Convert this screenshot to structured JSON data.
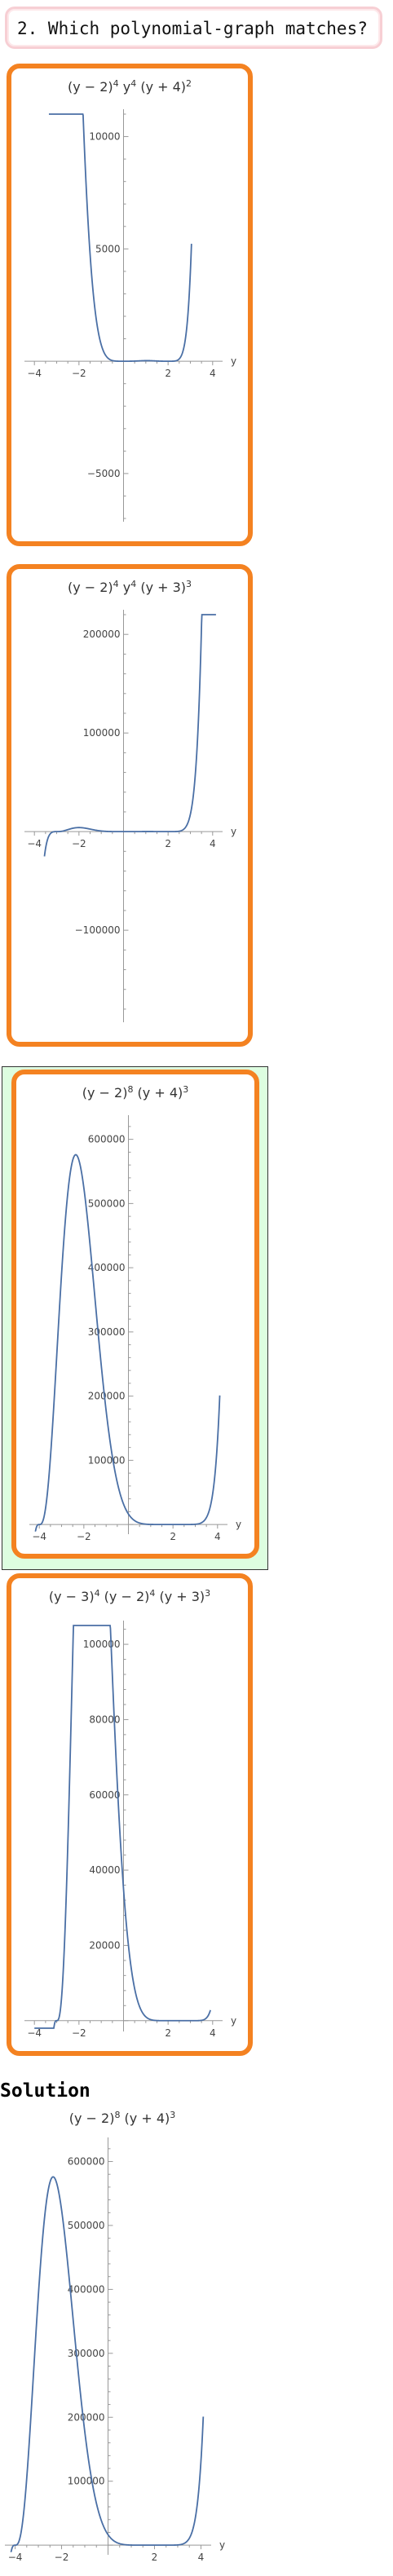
{
  "question": {
    "text": "2. Which polynomial-graph matches?"
  },
  "options": [
    {
      "id": "option-1",
      "selected_correct": false,
      "chart_data": {
        "type": "line",
        "title_parts": [
          "(y − 2)",
          "4",
          " y",
          "4",
          " (y + 4)",
          "2"
        ],
        "xlabel": "y",
        "xlim": [
          -4.3,
          4.3
        ],
        "ylim": [
          -7000,
          11000
        ],
        "xticks": [
          "−4",
          "−2",
          "2",
          "4"
        ],
        "yticks": [
          "10000",
          "5000",
          "−5000"
        ],
        "series": [
          {
            "values": []
          }
        ]
      }
    },
    {
      "id": "option-2",
      "selected_correct": false,
      "chart_data": {
        "type": "line",
        "title_parts": [
          "(y − 2)",
          "4",
          " y",
          "4",
          " (y + 3)",
          "3"
        ],
        "xlabel": "y",
        "xlim": [
          -4.3,
          4.3
        ],
        "ylim": [
          -190000,
          220000
        ],
        "xticks": [
          "−4",
          "−2",
          "2",
          "4"
        ],
        "yticks": [
          "200000",
          "100000",
          "−100000"
        ],
        "series": [
          {
            "values": []
          }
        ]
      }
    },
    {
      "id": "option-3",
      "selected_correct": true,
      "chart_data": {
        "type": "line",
        "title_parts": [
          "(y − 2)",
          "8",
          " (y + 4)",
          "3"
        ],
        "xlabel": "y",
        "xlim": [
          -4.3,
          4.3
        ],
        "ylim": [
          -10000,
          630000
        ],
        "xticks": [
          "−4",
          "−2",
          "2",
          "4"
        ],
        "yticks": [
          "600000",
          "500000",
          "400000",
          "300000",
          "200000",
          "100000"
        ],
        "series": [
          {
            "values": []
          }
        ]
      }
    },
    {
      "id": "option-4",
      "selected_correct": false,
      "chart_data": {
        "type": "line",
        "title_parts": [
          "(y − 3)",
          "4",
          " (y − 2)",
          "4",
          " (y + 3)",
          "3"
        ],
        "xlabel": "y",
        "xlim": [
          -4.3,
          4.3
        ],
        "ylim": [
          -2000,
          105000
        ],
        "xticks": [
          "−4",
          "−2",
          "2",
          "4"
        ],
        "yticks": [
          "100000",
          "80000",
          "60000",
          "40000",
          "20000"
        ],
        "series": [
          {
            "values": []
          }
        ]
      }
    }
  ],
  "solution": {
    "heading": "Solution",
    "chart_data": {
      "type": "line",
      "title_parts": [
        "(y − 2)",
        "8",
        " (y + 4)",
        "3"
      ],
      "xlabel": "y",
      "xlim": [
        -4.3,
        4.3
      ],
      "ylim": [
        -10000,
        630000
      ],
      "xticks": [
        "−4",
        "−2",
        "2",
        "4"
      ],
      "yticks": [
        "600000",
        "500000",
        "400000",
        "300000",
        "200000",
        "100000"
      ],
      "series": [
        {
          "values": []
        }
      ]
    }
  },
  "colors": {
    "curve": "#4a6fa5",
    "card_border": "#f48221",
    "correct_bg": "#ddfde0"
  }
}
